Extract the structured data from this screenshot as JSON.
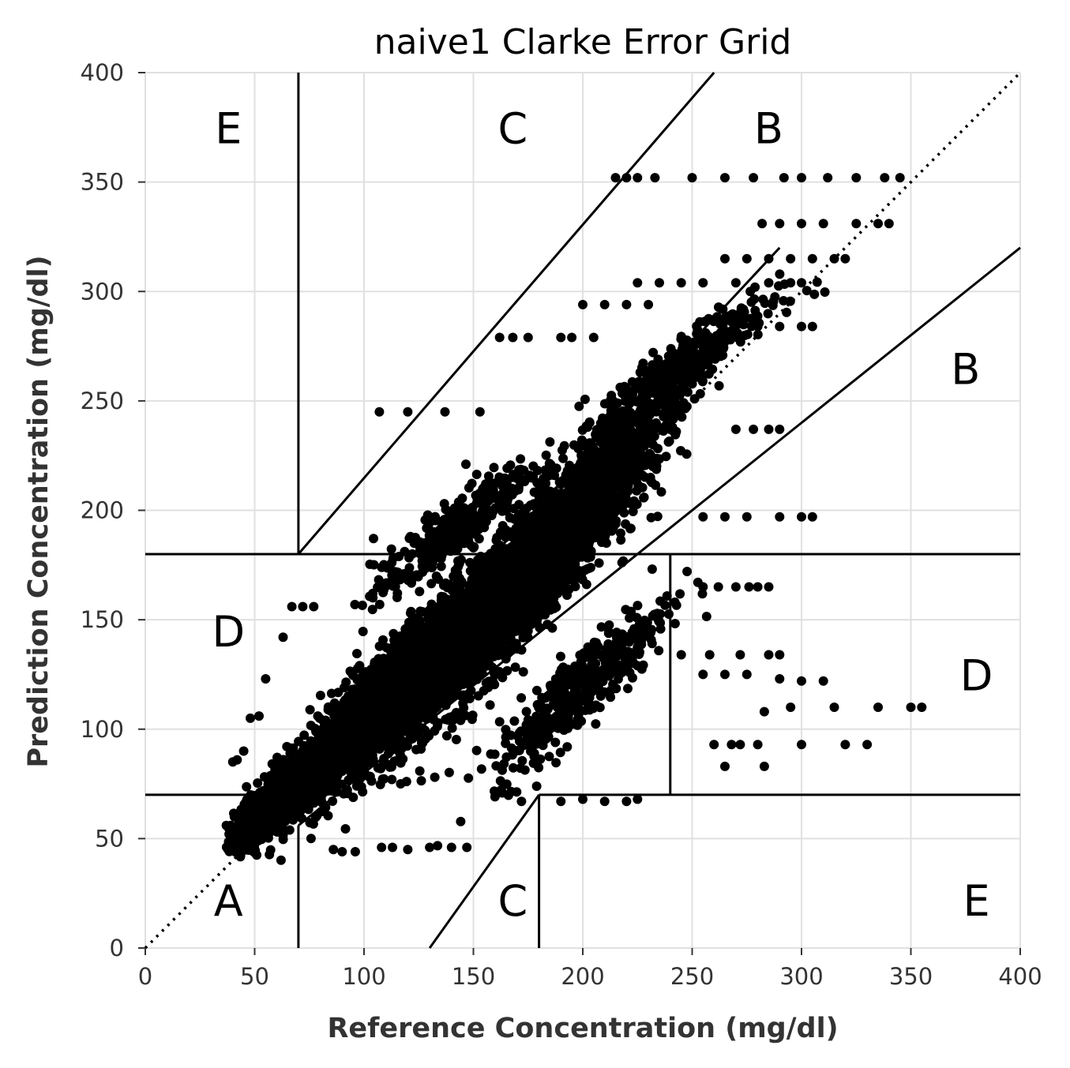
{
  "chart_data": {
    "type": "scatter",
    "title": "naive1 Clarke Error Grid",
    "xlabel": "Reference Concentration (mg/dl)",
    "ylabel": "Prediction Concentration (mg/dl)",
    "xlim": [
      0,
      400
    ],
    "ylim": [
      0,
      400
    ],
    "xticks": [
      "0",
      "50",
      "100",
      "150",
      "200",
      "250",
      "300",
      "350",
      "400"
    ],
    "yticks": [
      "0",
      "50",
      "100",
      "150",
      "200",
      "250",
      "300",
      "350",
      "400"
    ],
    "grid": true,
    "point_color": "#000000",
    "zone_labels": [
      {
        "text": "A",
        "x": 38,
        "y": 22
      },
      {
        "text": "B",
        "x": 285,
        "y": 375
      },
      {
        "text": "B",
        "x": 375,
        "y": 265
      },
      {
        "text": "C",
        "x": 168,
        "y": 375
      },
      {
        "text": "C",
        "x": 168,
        "y": 22
      },
      {
        "text": "D",
        "x": 38,
        "y": 145
      },
      {
        "text": "D",
        "x": 380,
        "y": 125
      },
      {
        "text": "E",
        "x": 38,
        "y": 375
      },
      {
        "text": "E",
        "x": 380,
        "y": 22
      }
    ],
    "zone_lines": [
      {
        "x": [
          0,
          400
        ],
        "y": [
          0,
          400
        ],
        "style": "dotted"
      },
      {
        "x": [
          0,
          58.33
        ],
        "y": [
          70,
          70
        ]
      },
      {
        "x": [
          70,
          290
        ],
        "y": [
          84,
          320
        ]
      },
      {
        "x": [
          70,
          70
        ],
        "y": [
          180,
          400
        ]
      },
      {
        "x": [
          70,
          70
        ],
        "y": [
          0,
          56
        ]
      },
      {
        "x": [
          70,
          400
        ],
        "y": [
          56,
          320
        ]
      },
      {
        "x": [
          0,
          70
        ],
        "y": [
          180,
          180
        ]
      },
      {
        "x": [
          70,
          400
        ],
        "y": [
          180,
          180
        ]
      },
      {
        "x": [
          70,
          260
        ],
        "y": [
          180,
          400
        ]
      },
      {
        "x": [
          130,
          180
        ],
        "y": [
          0,
          70
        ]
      },
      {
        "x": [
          180,
          400
        ],
        "y": [
          70,
          70
        ]
      },
      {
        "x": [
          180,
          180
        ],
        "y": [
          0,
          70
        ]
      },
      {
        "x": [
          240,
          240
        ],
        "y": [
          70,
          180
        ]
      },
      {
        "x": [
          240,
          400
        ],
        "y": [
          180,
          180
        ]
      }
    ],
    "clusters": [
      {
        "cx": 155,
        "cy": 150,
        "sx": 28,
        "sy": 30,
        "n": 2600
      },
      {
        "cx": 105,
        "cy": 110,
        "sx": 20,
        "sy": 22,
        "n": 1600
      },
      {
        "cx": 62,
        "cy": 70,
        "sx": 14,
        "sy": 14,
        "n": 900
      },
      {
        "cx": 185,
        "cy": 185,
        "sx": 22,
        "sy": 22,
        "n": 1000
      },
      {
        "cx": 215,
        "cy": 230,
        "sx": 20,
        "sy": 20,
        "n": 500
      },
      {
        "cx": 250,
        "cy": 270,
        "sx": 20,
        "sy": 14,
        "n": 260
      },
      {
        "cx": 200,
        "cy": 120,
        "sx": 20,
        "sy": 20,
        "n": 420
      },
      {
        "cx": 140,
        "cy": 190,
        "sx": 18,
        "sy": 16,
        "n": 350
      }
    ],
    "points": [
      [
        215,
        352
      ],
      [
        220,
        352
      ],
      [
        225,
        352
      ],
      [
        233,
        352
      ],
      [
        250,
        352
      ],
      [
        265,
        352
      ],
      [
        278,
        352
      ],
      [
        292,
        352
      ],
      [
        300,
        352
      ],
      [
        312,
        352
      ],
      [
        325,
        352
      ],
      [
        338,
        352
      ],
      [
        345,
        352
      ],
      [
        282,
        331
      ],
      [
        290,
        331
      ],
      [
        300,
        331
      ],
      [
        310,
        331
      ],
      [
        325,
        331
      ],
      [
        335,
        331
      ],
      [
        340,
        331
      ],
      [
        265,
        315
      ],
      [
        275,
        315
      ],
      [
        285,
        315
      ],
      [
        295,
        315
      ],
      [
        305,
        315
      ],
      [
        315,
        315
      ],
      [
        320,
        315
      ],
      [
        225,
        304
      ],
      [
        235,
        304
      ],
      [
        245,
        304
      ],
      [
        255,
        304
      ],
      [
        270,
        304
      ],
      [
        285,
        304
      ],
      [
        295,
        304
      ],
      [
        300,
        304
      ],
      [
        200,
        294
      ],
      [
        210,
        294
      ],
      [
        220,
        294
      ],
      [
        230,
        294
      ],
      [
        280,
        284
      ],
      [
        290,
        284
      ],
      [
        300,
        284
      ],
      [
        305,
        284
      ],
      [
        162,
        279
      ],
      [
        168,
        279
      ],
      [
        175,
        279
      ],
      [
        190,
        279
      ],
      [
        195,
        279
      ],
      [
        205,
        279
      ],
      [
        107,
        245
      ],
      [
        120,
        245
      ],
      [
        137,
        245
      ],
      [
        153,
        245
      ],
      [
        255,
        197
      ],
      [
        265,
        197
      ],
      [
        275,
        197
      ],
      [
        290,
        197
      ],
      [
        300,
        197
      ],
      [
        305,
        197
      ],
      [
        270,
        237
      ],
      [
        278,
        237
      ],
      [
        285,
        237
      ],
      [
        290,
        237
      ],
      [
        255,
        165
      ],
      [
        262,
        165
      ],
      [
        270,
        165
      ],
      [
        276,
        165
      ],
      [
        280,
        165
      ],
      [
        285,
        165
      ],
      [
        245,
        134
      ],
      [
        258,
        134
      ],
      [
        272,
        134
      ],
      [
        285,
        134
      ],
      [
        290,
        134
      ],
      [
        255,
        125
      ],
      [
        265,
        125
      ],
      [
        275,
        125
      ],
      [
        290,
        123
      ],
      [
        300,
        122
      ],
      [
        310,
        122
      ],
      [
        283,
        108
      ],
      [
        295,
        110
      ],
      [
        315,
        110
      ],
      [
        335,
        110
      ],
      [
        350,
        110
      ],
      [
        355,
        110
      ],
      [
        260,
        93
      ],
      [
        268,
        93
      ],
      [
        272,
        93
      ],
      [
        280,
        93
      ],
      [
        300,
        93
      ],
      [
        320,
        93
      ],
      [
        330,
        93
      ],
      [
        265,
        83
      ],
      [
        283,
        83
      ],
      [
        172,
        67
      ],
      [
        190,
        67
      ],
      [
        210,
        67
      ],
      [
        200,
        68
      ],
      [
        220,
        67
      ],
      [
        225,
        68
      ],
      [
        86,
        45
      ],
      [
        90,
        44
      ],
      [
        96,
        44
      ],
      [
        108,
        46
      ],
      [
        113,
        46
      ],
      [
        120,
        45
      ],
      [
        130,
        46
      ],
      [
        140,
        46
      ],
      [
        147,
        46
      ],
      [
        40,
        85
      ],
      [
        42,
        86
      ],
      [
        45,
        90
      ],
      [
        48,
        105
      ],
      [
        52,
        106
      ],
      [
        55,
        123
      ],
      [
        67,
        156
      ],
      [
        72,
        156
      ],
      [
        77,
        156
      ],
      [
        63,
        142
      ]
    ]
  }
}
